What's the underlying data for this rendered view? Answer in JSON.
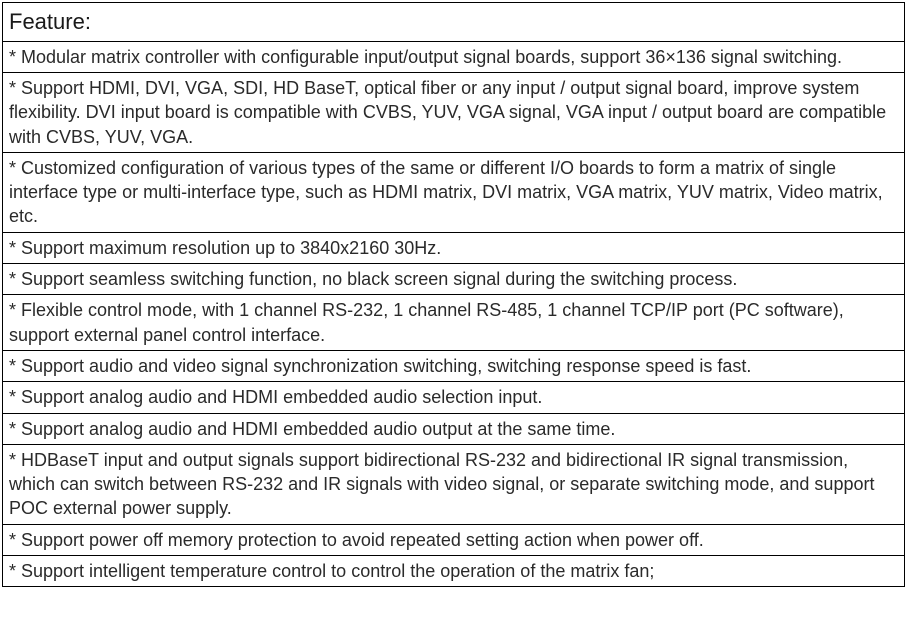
{
  "table": {
    "header": "Feature:",
    "rows": [
      "*  Modular matrix controller with configurable input/output signal boards, support 36×136 signal switching.",
      "*  Support HDMI, DVI, VGA, SDI, HD BaseT, optical fiber or any input / output signal board, improve system flexibility. DVI input board is compatible with CVBS, YUV, VGA signal, VGA input / output board are compatible with CVBS, YUV, VGA.",
      "*  Customized configuration of various types of the same or different I/O boards to form a matrix of single interface type or multi-interface type, such as HDMI matrix, DVI matrix, VGA matrix, YUV matrix, Video matrix, etc.",
      "*  Support maximum resolution up to 3840x2160 30Hz.",
      "*  Support seamless switching function, no black screen signal during the switching process.",
      "*  Flexible control mode, with 1 channel RS-232, 1 channel RS-485, 1 channel TCP/IP port (PC software), support external panel control interface.",
      "*  Support audio and video signal synchronization switching, switching response speed is fast.",
      "*  Support analog audio and HDMI embedded audio selection input.",
      "*  Support analog audio and HDMI embedded audio output at the same time.",
      "*  HDBaseT input and output signals support bidirectional RS-232 and bidirectional IR signal transmission, which can switch between RS-232 and IR signals with video signal, or separate switching mode, and support POC external power supply.",
      "*  Support power off memory protection to avoid repeated setting action when power off.",
      "*  Support intelligent temperature control to control the operation of the matrix fan;"
    ],
    "styling": {
      "border_color": "#000000",
      "border_width": 1,
      "background_color": "#ffffff",
      "text_color": "#2a2a2a",
      "font_family": "Arial",
      "body_font_size": 18,
      "header_font_size": 22,
      "cell_padding": "3px 6px"
    }
  }
}
